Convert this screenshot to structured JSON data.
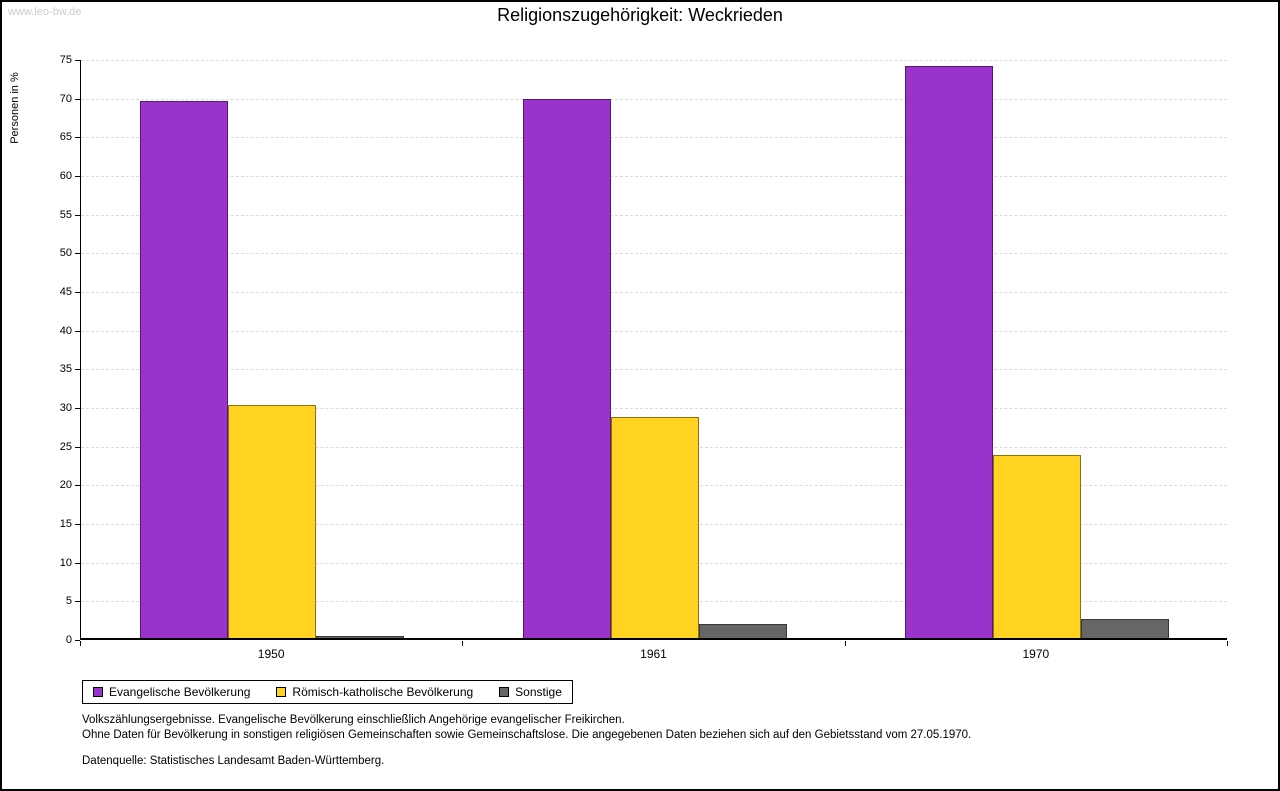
{
  "watermark": "www.leo-bw.de",
  "title": "Religionszugehörigkeit: Weckrieden",
  "chart_data": {
    "type": "bar",
    "title": "Religionszugehörigkeit: Weckrieden",
    "xlabel": "",
    "ylabel": "Personen in %",
    "ylim": [
      0,
      75
    ],
    "ytick_step": 5,
    "grid": true,
    "legend_position": "bottom",
    "categories": [
      "1950",
      "1961",
      "1970"
    ],
    "series": [
      {
        "name": "Evangelische Bevölkerung",
        "color": "#9933CC",
        "values": [
          69.5,
          69.7,
          74.0
        ]
      },
      {
        "name": "Römisch-katholische Bevölkerung",
        "color": "#FFD320",
        "values": [
          30.1,
          28.6,
          23.7
        ]
      },
      {
        "name": "Sonstige",
        "color": "#666666",
        "values": [
          0.3,
          1.8,
          2.5
        ]
      }
    ]
  },
  "footnotes": {
    "line1": "Volkszählungsergebnisse. Evangelische Bevölkerung einschließlich Angehörige evangelischer Freikirchen.",
    "line2": "Ohne Daten für Bevölkerung in sonstigen religiösen Gemeinschaften sowie Gemeinschaftslose. Die angegebenen Daten beziehen sich auf den Gebietsstand vom 27.05.1970.",
    "source": "Datenquelle: Statistisches Landesamt Baden-Württemberg."
  }
}
